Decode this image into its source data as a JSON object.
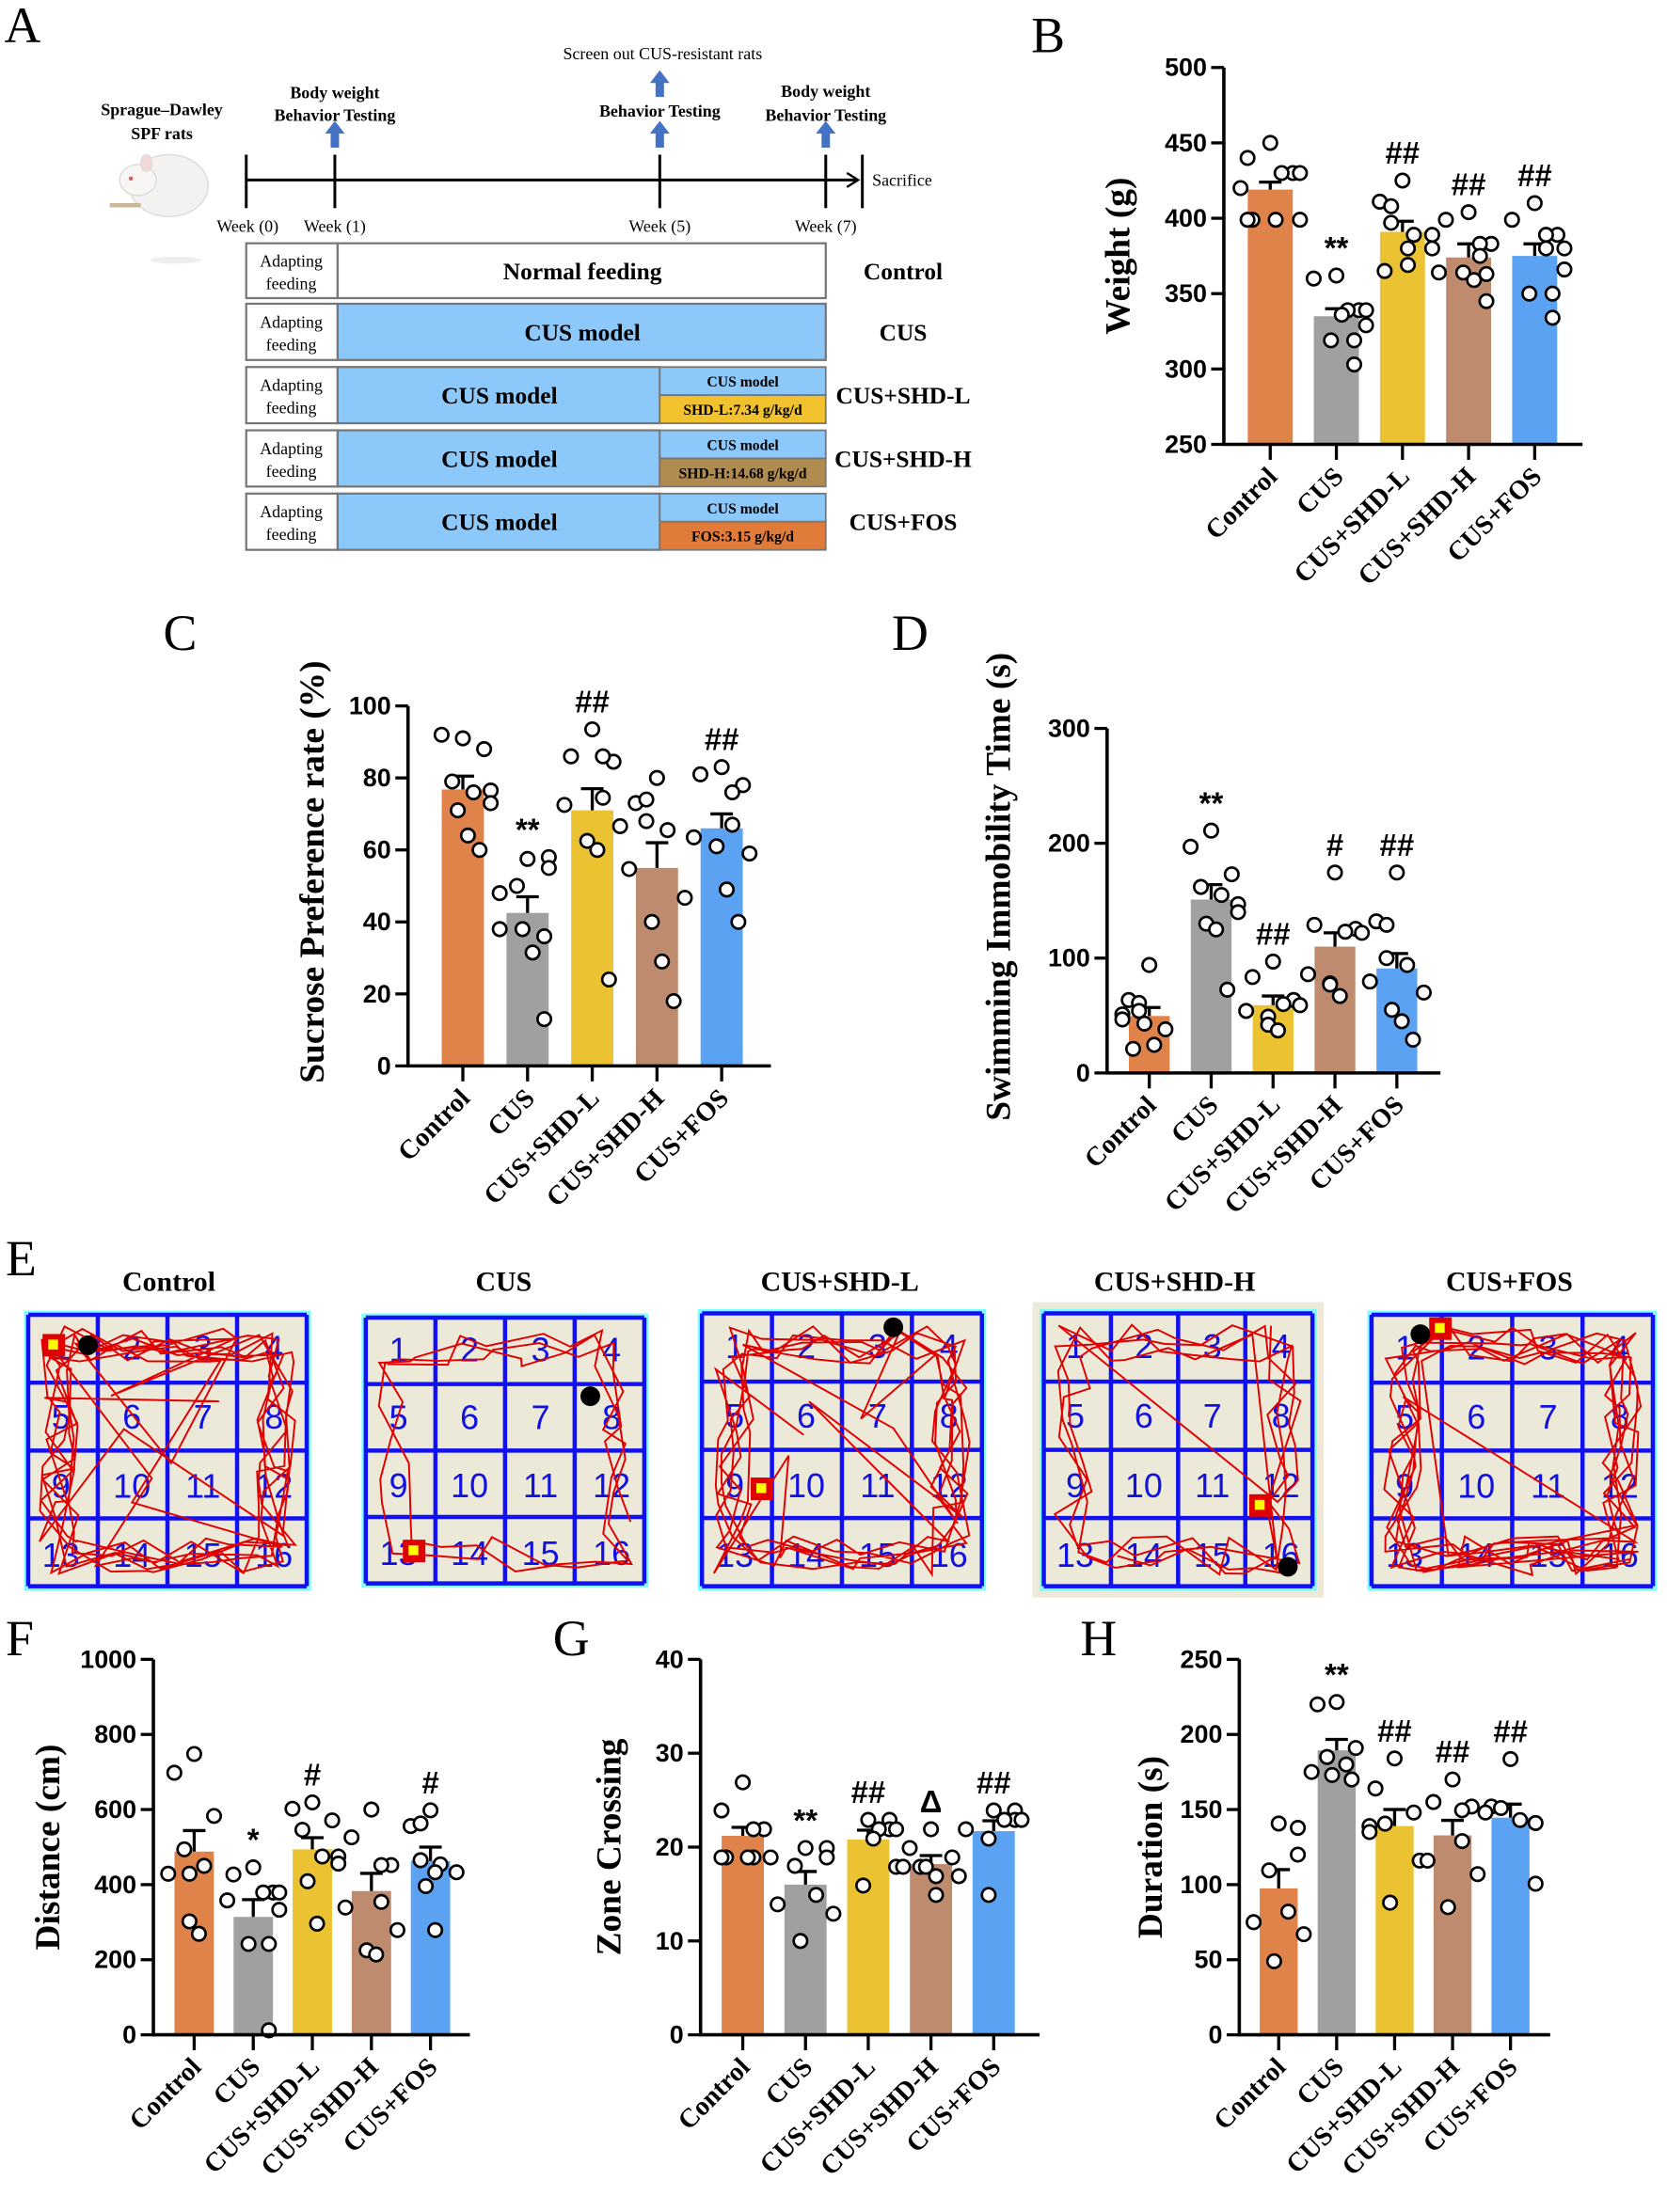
{
  "panel_letters": {
    "a": "A",
    "b": "B",
    "c": "C",
    "d": "D",
    "e": "E",
    "f": "F",
    "g": "G",
    "h": "H"
  },
  "panel_a": {
    "animal_line1": "Sprague–Dawley",
    "animal_line2": "SPF rats",
    "screen_out": "Screen out CUS-resistant rats",
    "week1_line1": "Body weight",
    "week1_line2": "Behavior Testing",
    "week5_line": "Behavior Testing",
    "week7_line1": "Body weight",
    "week7_line2": "Behavior Testing",
    "weeks": [
      "Week (0)",
      "Week (1)",
      "Week (5)",
      "Week (7)"
    ],
    "sacrifice": "Sacrifice",
    "adapting_line1": "Adapting",
    "adapting_line2": "feeding",
    "normal_feeding": "Normal feeding",
    "cus_model": "CUS model",
    "doses": [
      "SHD-L:7.34 g/kg/d",
      "SHD-H:14.68 g/kg/d",
      "FOS:3.15 g/kg/d"
    ],
    "dose_colors": [
      "#F2C12E",
      "#B08B4F",
      "#E07B39"
    ],
    "groups": [
      "Control",
      "CUS",
      "CUS+SHD-L",
      "CUS+SHD-H",
      "CUS+FOS"
    ],
    "cus_color": "#8CC8FA",
    "arrow_color": "#4472C4"
  },
  "panel_e": {
    "titles": [
      "Control",
      "CUS",
      "CUS+SHD-L",
      "CUS+SHD-H",
      "CUS+FOS"
    ],
    "cell_numbers": [
      "1",
      "2",
      "3",
      "4",
      "5",
      "6",
      "7",
      "8",
      "9",
      "10",
      "11",
      "12",
      "13",
      "14",
      "15",
      "16"
    ],
    "grid_color": "#1010F0",
    "track_color": "#E00000",
    "floor_color": "#ECE9D8"
  },
  "bar_colors": [
    "#E0834A",
    "#A0A0A2",
    "#EBC232",
    "#BF8B6E",
    "#5BA3F2"
  ],
  "chart_data": [
    {
      "panel": "B",
      "type": "bar",
      "ylabel": "Weight (g)",
      "ylim": [
        250,
        500
      ],
      "yticks": [
        "250",
        "300",
        "350",
        "400",
        "450",
        "500"
      ],
      "categories": [
        "Control",
        "CUS",
        "CUS+SHD-L",
        "CUS+SHD-H",
        "CUS+FOS"
      ],
      "values": [
        419,
        335,
        391,
        374,
        375
      ],
      "sem": [
        5,
        5,
        7,
        9,
        8
      ],
      "points": [
        [
          450,
          440,
          430,
          430,
          430,
          420,
          399,
          399,
          399,
          399
        ],
        [
          362,
          360,
          339,
          339,
          339,
          336,
          329,
          319,
          319,
          303
        ],
        [
          425,
          411,
          408,
          397,
          389,
          389,
          380,
          380,
          369,
          365
        ],
        [
          404,
          399,
          383,
          383,
          375,
          364,
          364,
          363,
          359,
          345
        ],
        [
          410,
          399,
          389,
          389,
          380,
          380,
          366,
          350,
          350,
          334
        ]
      ],
      "annotations": [
        "",
        "**",
        "##",
        "##",
        "##"
      ]
    },
    {
      "panel": "C",
      "type": "bar",
      "ylabel": "Sucrose Preference rate (%)",
      "ylim": [
        0,
        100
      ],
      "yticks": [
        "0",
        "20",
        "40",
        "60",
        "80",
        "100"
      ],
      "categories": [
        "Control",
        "CUS",
        "CUS+SHD-L",
        "CUS+SHD-H",
        "CUS+FOS"
      ],
      "values": [
        76.8,
        42.5,
        71,
        55,
        66
      ],
      "sem": [
        3.7,
        4.5,
        6,
        7,
        4
      ],
      "points": [
        [
          91,
          92,
          88,
          79,
          76,
          76.5,
          73,
          71,
          64,
          60
        ],
        [
          57.5,
          58,
          55,
          50,
          48,
          38,
          38,
          36,
          31.5,
          13
        ],
        [
          93.5,
          86,
          84.5,
          86,
          74.5,
          72.5,
          66.6,
          62.5,
          60,
          24
        ],
        [
          80,
          73,
          74,
          68,
          65.5,
          54.7,
          46.7,
          40,
          29,
          18
        ],
        [
          83,
          81,
          78,
          76,
          67,
          63.5,
          59,
          61,
          49,
          40
        ]
      ],
      "annotations": [
        "",
        "**",
        "##",
        "",
        "##"
      ]
    },
    {
      "panel": "D",
      "type": "bar",
      "ylabel": "Swimming Immobility Time (s)",
      "ylim": [
        0,
        300
      ],
      "yticks": [
        "0",
        "100",
        "200",
        "300"
      ],
      "categories": [
        "Control",
        "CUS",
        "CUS+SHD-L",
        "CUS+SHD-H",
        "CUS+FOS"
      ],
      "values": [
        49.6,
        151,
        59,
        110,
        91
      ],
      "sem": [
        7.4,
        13,
        8,
        12,
        13
      ],
      "points": [
        [
          94,
          63.5,
          61,
          54,
          51,
          46.6,
          43,
          38,
          24.5,
          21
        ],
        [
          211,
          197,
          173,
          162,
          155,
          147,
          140,
          130,
          125,
          72.5
        ],
        [
          97,
          83.5,
          63.5,
          60,
          59,
          54,
          49,
          42,
          37
        ],
        [
          174.5,
          129,
          125.5,
          123,
          122,
          86,
          78,
          77,
          67
        ],
        [
          174.5,
          132,
          129,
          100,
          94,
          79.6,
          70,
          55,
          45,
          29
        ]
      ],
      "annotations": [
        "",
        "**",
        "##",
        "#",
        "##"
      ]
    },
    {
      "panel": "F",
      "type": "bar",
      "ylabel": "Distance (cm)",
      "ylim": [
        0,
        1000
      ],
      "yticks": [
        "0",
        "200",
        "400",
        "600",
        "800",
        "1000"
      ],
      "categories": [
        "Control",
        "CUS",
        "CUS+SHD-L",
        "CUS+SHD-H",
        "CUS+FOS"
      ],
      "values": [
        488,
        314,
        494,
        383,
        463
      ],
      "sem": [
        56,
        46,
        31,
        47,
        37
      ],
      "points": [
        [
          748,
          698,
          583,
          494,
          450,
          429,
          429,
          302,
          269
        ],
        [
          446,
          427,
          379,
          379,
          379,
          358,
          333,
          242,
          242,
          12
        ],
        [
          619,
          602,
          571,
          546,
          475,
          475,
          456,
          409,
          296
        ],
        [
          600,
          526,
          452,
          452,
          354,
          339,
          279,
          225,
          214
        ],
        [
          598,
          556,
          563,
          465,
          454,
          433,
          433,
          396,
          279
        ]
      ],
      "annotations": [
        "",
        "*",
        "#",
        "",
        "#"
      ]
    },
    {
      "panel": "G",
      "type": "bar",
      "ylabel": "Zone Crossing",
      "ylim": [
        0,
        40
      ],
      "yticks": [
        "0",
        "10",
        "20",
        "30",
        "40"
      ],
      "categories": [
        "Control",
        "CUS",
        "CUS+SHD-L",
        "CUS+SHD-H",
        "CUS+FOS"
      ],
      "values": [
        21.2,
        16,
        20.8,
        18.2,
        21.7
      ],
      "sem": [
        0.9,
        1.4,
        1.0,
        0.9,
        1.1
      ],
      "points": [
        [
          26.9,
          23.9,
          21.9,
          21.9,
          18.9,
          18.9,
          18.9,
          18.9,
          18.9
        ],
        [
          19.9,
          19.9,
          18.9,
          18,
          14.9,
          13.9,
          12.9,
          10
        ],
        [
          22.9,
          22.9,
          21.9,
          21.9,
          21.9,
          20.9,
          17.9,
          15.9
        ],
        [
          21.9,
          19.9,
          18.9,
          17.9,
          17.9,
          17.9,
          16.9,
          16.9,
          14.9
        ],
        [
          23.9,
          23.9,
          22.9,
          22.9,
          22.9,
          21.9,
          20.9,
          14.9
        ]
      ],
      "annotations": [
        "",
        "**",
        "##",
        "Δ",
        "##"
      ]
    },
    {
      "panel": "H",
      "type": "bar",
      "ylabel": "Duration (s)",
      "ylim": [
        0,
        250
      ],
      "yticks": [
        "0",
        "50",
        "100",
        "150",
        "200",
        "250"
      ],
      "categories": [
        "Control",
        "CUS",
        "CUS+SHD-L",
        "CUS+SHD-H",
        "CUS+FOS"
      ],
      "values": [
        97.5,
        189.4,
        139,
        132.8,
        144.6
      ],
      "sem": [
        12.5,
        7.3,
        11,
        10,
        9
      ],
      "points": [
        [
          140.7,
          137.8,
          120,
          109.5,
          82,
          75,
          67,
          49
        ],
        [
          221.6,
          220,
          191,
          185,
          180,
          175,
          173,
          170
        ],
        [
          184,
          164,
          148,
          140.6,
          139,
          135,
          116,
          88
        ],
        [
          170,
          155,
          152,
          149.5,
          129,
          116,
          107,
          85
        ],
        [
          183.6,
          152,
          151,
          148,
          143,
          141,
          100.6
        ]
      ],
      "annotations": [
        "",
        "**",
        "##",
        "##",
        "##"
      ]
    }
  ]
}
